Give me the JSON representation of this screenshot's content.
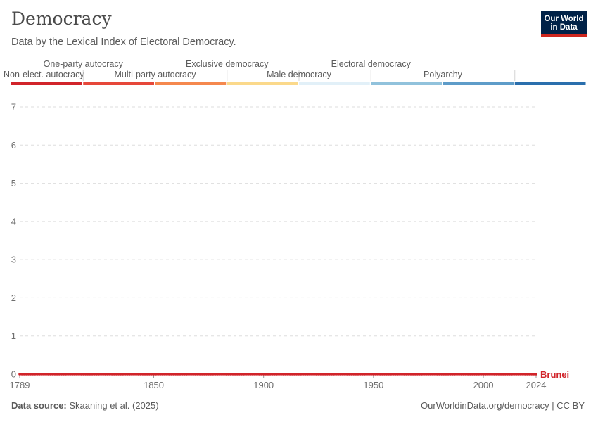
{
  "header": {
    "title": "Democracy",
    "subtitle": "Data by the Lexical Index of Electoral Democracy."
  },
  "logo": {
    "line1": "Our World",
    "line2": "in Data"
  },
  "footer": {
    "source_label": "Data source:",
    "source_text": "Skaaning et al. (2025)",
    "url_text": "OurWorldinData.org/democracy",
    "license_text": "CC BY"
  },
  "chart_data": {
    "type": "line",
    "title": "Democracy",
    "subtitle": "Data by the Lexical Index of Electoral Democracy.",
    "xlabel": "",
    "ylabel": "",
    "xlim": [
      1789,
      2024
    ],
    "ylim": [
      0,
      7
    ],
    "x_ticks": [
      1789,
      1850,
      1900,
      1950,
      2000,
      2024
    ],
    "y_ticks": [
      0,
      1,
      2,
      3,
      4,
      5,
      6,
      7
    ],
    "grid": "horizontal-dashed",
    "legend": {
      "type": "categorical-color-bar",
      "position": "top",
      "categories": [
        {
          "label": "Non-elect. autocracy",
          "color": "#d1242a",
          "row": "lower"
        },
        {
          "label": "One-party autocracy",
          "color": "#e6473a",
          "row": "upper"
        },
        {
          "label": "Multi-party autocracy",
          "color": "#f5884e",
          "row": "lower"
        },
        {
          "label": "Exclusive democracy",
          "color": "#fbd98b",
          "row": "upper"
        },
        {
          "label": "Male democracy",
          "color": "#e2f0f8",
          "row": "lower"
        },
        {
          "label": "Electoral democracy",
          "color": "#91c2dc",
          "row": "upper"
        },
        {
          "label": "Polyarchy",
          "color": "#5e9cc9",
          "row": "lower"
        },
        {
          "label": "",
          "color": "#2a6fad",
          "row": "none"
        }
      ]
    },
    "series": [
      {
        "name": "Brunei",
        "color": "#d1242a",
        "x_start": 1789,
        "x_end": 2024,
        "value": 0
      }
    ]
  }
}
